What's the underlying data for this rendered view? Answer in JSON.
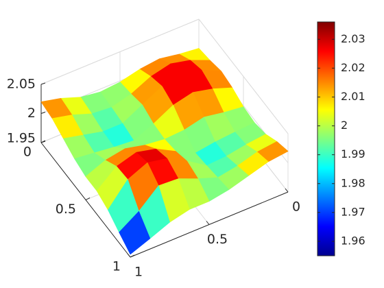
{
  "chart_data": {
    "type": "surface",
    "colormap": "jet",
    "x": [
      0,
      0.125,
      0.25,
      0.375,
      0.5,
      0.625,
      0.75,
      0.875,
      1
    ],
    "y": [
      0,
      0.125,
      0.25,
      0.375,
      0.5,
      0.625,
      0.75,
      0.875,
      1
    ],
    "z": [
      [
        2.0,
        2.004,
        2.01,
        2.006,
        1.998,
        1.995,
        2.0,
        2.012,
        2.02
      ],
      [
        2.004,
        2.018,
        2.026,
        2.018,
        2.002,
        1.993,
        1.996,
        2.008,
        2.016
      ],
      [
        2.01,
        2.026,
        2.035,
        2.026,
        2.008,
        1.99,
        1.99,
        1.998,
        2.006
      ],
      [
        2.006,
        2.018,
        2.026,
        2.018,
        2.0,
        1.985,
        1.988,
        1.992,
        1.996
      ],
      [
        1.998,
        2.002,
        2.008,
        2.0,
        1.998,
        2.002,
        2.01,
        2.004,
        1.99
      ],
      [
        1.995,
        1.993,
        1.99,
        1.985,
        2.002,
        2.02,
        2.028,
        2.018,
        1.99
      ],
      [
        2.0,
        1.996,
        1.99,
        1.988,
        2.01,
        2.028,
        2.035,
        2.02,
        1.982
      ],
      [
        2.012,
        2.008,
        1.998,
        1.992,
        2.004,
        2.018,
        2.02,
        1.99,
        1.968
      ],
      [
        2.02,
        2.016,
        2.006,
        1.996,
        1.99,
        1.99,
        1.982,
        1.968,
        1.955
      ]
    ],
    "xlim": [
      0,
      1
    ],
    "xticks": [
      0,
      0.5,
      1
    ],
    "ylim": [
      0,
      1
    ],
    "yticks": [
      0,
      0.5,
      1
    ],
    "zlim": [
      1.95,
      2.05
    ],
    "zticks": [
      1.95,
      2,
      2.05
    ],
    "clim": [
      1.955,
      2.036
    ],
    "cticks": [
      1.96,
      1.97,
      1.98,
      1.99,
      2,
      2.01,
      2.02,
      2.03
    ],
    "grid": true
  }
}
